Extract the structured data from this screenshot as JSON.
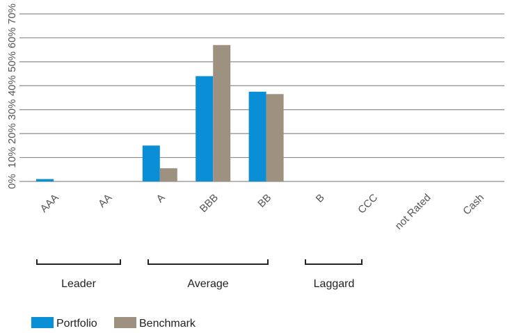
{
  "chart_data": {
    "type": "bar",
    "categories": [
      "AAA",
      "AA",
      "A",
      "BBB",
      "BB",
      "B",
      "CCC",
      "not Rated",
      "Cash"
    ],
    "series": [
      {
        "name": "Portfolio",
        "color": "#0a8fd6",
        "values": [
          1,
          0,
          15,
          44,
          37.5,
          0,
          0,
          0,
          0
        ]
      },
      {
        "name": "Benchmark",
        "color": "#9e9180",
        "values": [
          0,
          0,
          5.5,
          57,
          36.5,
          0,
          0,
          0,
          0
        ]
      }
    ],
    "yticks": [
      "0%",
      "10%",
      "20%",
      "30%",
      "40%",
      "50%",
      "60%",
      "70%"
    ],
    "ylim": [
      0,
      70
    ],
    "grid": true,
    "groups": [
      {
        "label": "Leader"
      },
      {
        "label": "Average"
      },
      {
        "label": "Laggard"
      }
    ],
    "legend_placement": "bottom-left"
  }
}
